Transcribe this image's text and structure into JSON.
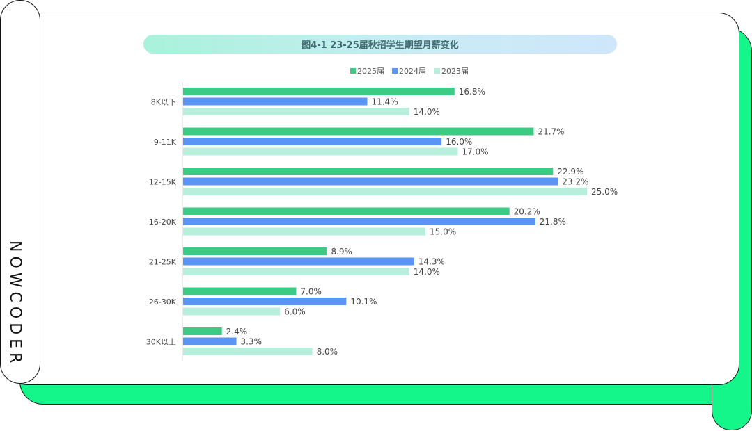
{
  "brand": "NOWCODER",
  "chart_data": {
    "type": "bar",
    "orientation": "horizontal",
    "title": "图4-1 23-25届秋招学生期望月薪变化",
    "categories": [
      "8K以下",
      "9-11K",
      "12-15K",
      "16-20K",
      "21-25K",
      "26-30K",
      "30K以上"
    ],
    "series": [
      {
        "name": "2025届",
        "color": "#3ccb85",
        "values": [
          16.8,
          21.7,
          22.9,
          20.2,
          8.9,
          7.0,
          2.4
        ],
        "labels": [
          "16.8%",
          "21.7%",
          "22.9%",
          "20.2%",
          "8.9%",
          "7.0%",
          "2.4%"
        ]
      },
      {
        "name": "2024届",
        "color": "#5b95f4",
        "values": [
          11.4,
          16.0,
          23.2,
          21.8,
          14.3,
          10.1,
          3.3
        ],
        "labels": [
          "11.4%",
          "16.0%",
          "23.2%",
          "21.8%",
          "14.3%",
          "10.1%",
          "3.3%"
        ]
      },
      {
        "name": "2023届",
        "color": "#b7eedc",
        "values": [
          14.0,
          17.0,
          25.0,
          15.0,
          14.0,
          6.0,
          8.0
        ],
        "labels": [
          "14.0%",
          "17.0%",
          "25.0%",
          "15.0%",
          "14.0%",
          "6.0%",
          "8.0%"
        ]
      }
    ],
    "xlim": [
      0,
      25
    ],
    "grid": false,
    "legend": "top-right"
  }
}
